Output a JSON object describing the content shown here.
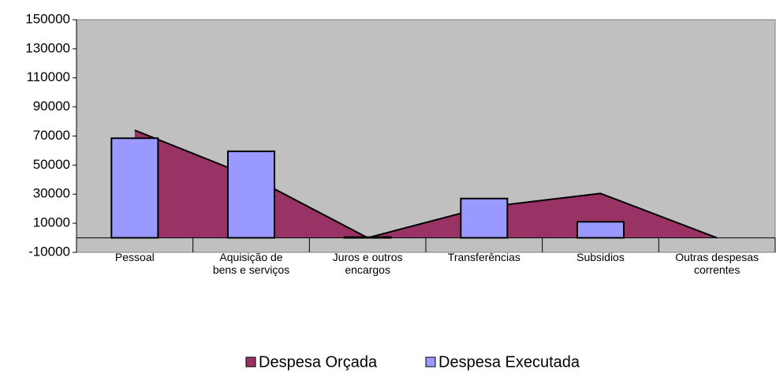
{
  "chart_data": {
    "type": "combo",
    "categories": [
      "Pessoal",
      "Aquisição de bens e serviços",
      "Juros e outros encargos",
      "Transferências",
      "Subsidios",
      "Outras despesas correntes"
    ],
    "series": [
      {
        "name": "Despesa Orçada",
        "type": "area",
        "color": "#993366",
        "values": [
          74000,
          42000,
          0,
          21000,
          30500,
          0
        ]
      },
      {
        "name": "Despesa Executada",
        "type": "bar",
        "color": "#9999ff",
        "values": [
          68500,
          59500,
          500,
          27000,
          11000,
          0
        ]
      }
    ],
    "ylim": [
      -10000,
      150000
    ],
    "yticks": [
      -10000,
      10000,
      30000,
      50000,
      70000,
      90000,
      110000,
      130000,
      150000
    ],
    "plot_background": "#c0c0c0",
    "legend": "bottom"
  }
}
